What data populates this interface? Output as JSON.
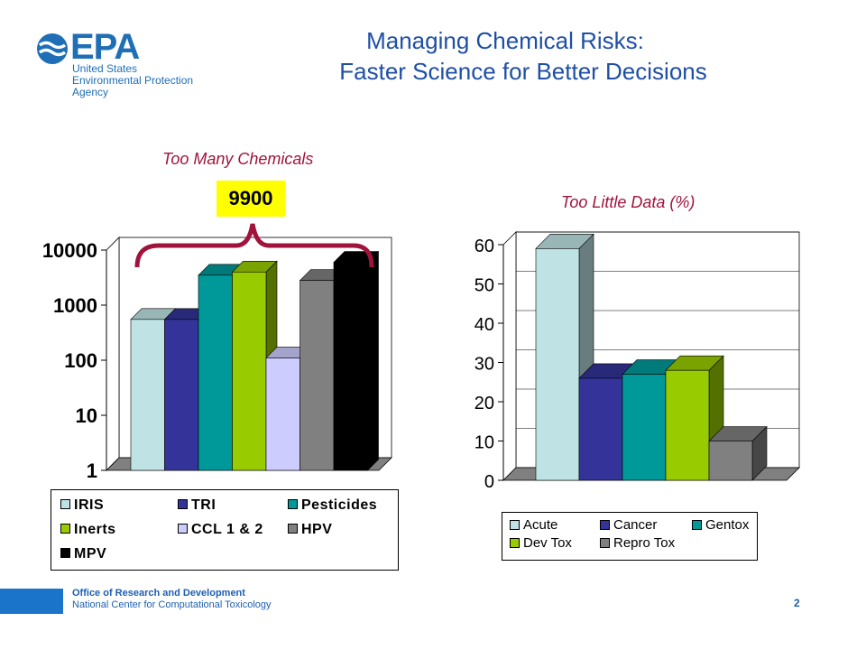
{
  "header": {
    "logo_text": "EPA",
    "logo_lines": [
      "United States",
      "Environmental Protection",
      "Agency"
    ],
    "title_line1": "Managing Chemical Risks:",
    "title_line2": "Faster Science for Better Decisions"
  },
  "footer": {
    "line1": "Office of Research and Development",
    "line2": "National Center for Computational Toxicology",
    "page_number": "2"
  },
  "chart_data": [
    {
      "type": "bar",
      "title": "Too Many Chemicals",
      "annotation": "9900",
      "yscale": "log",
      "ylim": [
        1,
        10000
      ],
      "yticks": [
        "1",
        "10",
        "100",
        "1000",
        "10000"
      ],
      "grid": false,
      "legend_position": "bottom",
      "series": [
        {
          "name": "IRIS",
          "values": [
            550
          ],
          "color": "#bfe3e5"
        },
        {
          "name": "TRI",
          "values": [
            550
          ],
          "color": "#333399"
        },
        {
          "name": "Pesticides",
          "values": [
            3500
          ],
          "color": "#009999"
        },
        {
          "name": "Inerts",
          "values": [
            4000
          ],
          "color": "#99cc00"
        },
        {
          "name": "CCL 1 & 2",
          "values": [
            110
          ],
          "color": "#ccccff"
        },
        {
          "name": "HPV",
          "values": [
            2800
          ],
          "color": "#808080"
        },
        {
          "name": "MPV",
          "values": [
            6000
          ],
          "color": "#000000"
        }
      ]
    },
    {
      "type": "bar",
      "title": "Too Little Data (%)",
      "ylim": [
        0,
        60
      ],
      "yticks": [
        "0",
        "10",
        "20",
        "30",
        "40",
        "50",
        "60"
      ],
      "grid": true,
      "legend_position": "bottom",
      "series": [
        {
          "name": "Acute",
          "values": [
            59
          ],
          "color": "#bfe3e5"
        },
        {
          "name": "Cancer",
          "values": [
            26
          ],
          "color": "#333399"
        },
        {
          "name": "Gentox",
          "values": [
            27
          ],
          "color": "#009999"
        },
        {
          "name": "Dev Tox",
          "values": [
            28
          ],
          "color": "#99cc00"
        },
        {
          "name": "Repro Tox",
          "values": [
            10
          ],
          "color": "#808080"
        }
      ]
    }
  ]
}
